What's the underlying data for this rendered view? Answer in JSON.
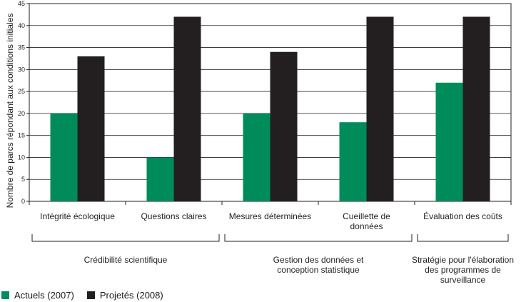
{
  "colors": {
    "actuels": "#008c5a",
    "projetes": "#231f20"
  },
  "chart_data": {
    "type": "bar",
    "ylabel": "Nombre de parcs répondant aux conditions initiales",
    "ylim": [
      0,
      45
    ],
    "yticks": [
      0,
      5,
      10,
      15,
      20,
      25,
      30,
      35,
      40,
      45
    ],
    "grid": true,
    "legend_position": "bottom-left",
    "categories": [
      "Intégrité écologique",
      "Questions claires",
      "Mesures déterminées",
      "Cueillette de données",
      "Évaluation des coûts"
    ],
    "series": [
      {
        "name": "Actuels (2007)",
        "values": [
          20,
          10,
          20,
          18,
          27
        ]
      },
      {
        "name": "Projetés (2008)",
        "values": [
          33,
          42,
          34,
          42,
          42
        ]
      }
    ],
    "groups": [
      {
        "label": "Crédibilité scientifique",
        "categories": [
          0,
          1
        ]
      },
      {
        "label": "Gestion des données et conception statistique",
        "categories": [
          2,
          3
        ]
      },
      {
        "label": "Stratégie pour l'élaboration des programmes de surveillance",
        "categories": [
          4
        ]
      }
    ]
  }
}
